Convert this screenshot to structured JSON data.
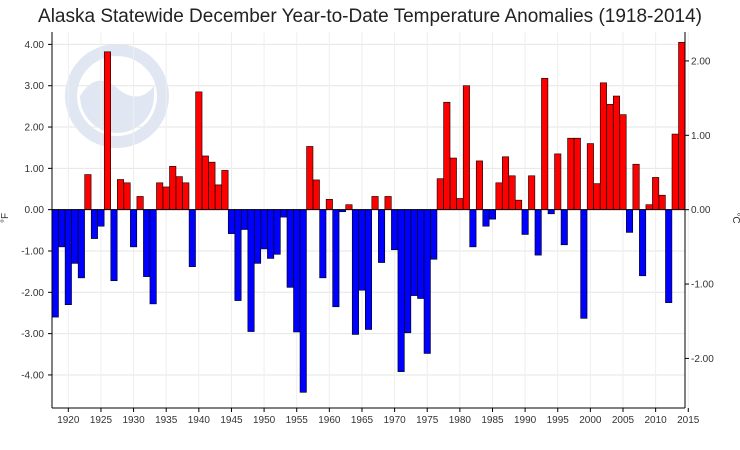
{
  "chart_data": {
    "type": "bar",
    "title": "Alaska Statewide December Year-to-Date Temperature Anomalies (1918-2014)",
    "ylabel_left": "°F",
    "ylabel_right": "°C",
    "ylim_f": [
      -4.8,
      4.3
    ],
    "yticks_f": [
      4,
      3,
      2,
      1,
      0,
      -1,
      -2,
      -3,
      -4
    ],
    "ytick_labels_f": [
      "4.00",
      "3.00",
      "2.00",
      "1.00",
      "0.00",
      "-1.00",
      "-2.00",
      "-3.00",
      "-4.00"
    ],
    "yticks_c": [
      2,
      1,
      0,
      -1,
      -2
    ],
    "ytick_labels_c": [
      "2.00",
      "1.00",
      "0.00",
      "-1.00",
      "-2.00"
    ],
    "xlim": [
      1917.5,
      2014.5
    ],
    "xticks": [
      1920,
      1925,
      1930,
      1935,
      1940,
      1945,
      1950,
      1955,
      1960,
      1965,
      1970,
      1975,
      1980,
      1985,
      1990,
      1995,
      2000,
      2005,
      2010,
      2015
    ],
    "positive_color": "#ff0000",
    "negative_color": "#0000ff",
    "years": [
      1918,
      1919,
      1920,
      1921,
      1922,
      1923,
      1924,
      1925,
      1926,
      1927,
      1928,
      1929,
      1930,
      1931,
      1932,
      1933,
      1934,
      1935,
      1936,
      1937,
      1938,
      1939,
      1940,
      1941,
      1942,
      1943,
      1944,
      1945,
      1946,
      1947,
      1948,
      1949,
      1950,
      1951,
      1952,
      1953,
      1954,
      1955,
      1956,
      1957,
      1958,
      1959,
      1960,
      1961,
      1962,
      1963,
      1964,
      1965,
      1966,
      1967,
      1968,
      1969,
      1970,
      1971,
      1972,
      1973,
      1974,
      1975,
      1976,
      1977,
      1978,
      1979,
      1980,
      1981,
      1982,
      1983,
      1984,
      1985,
      1986,
      1987,
      1988,
      1989,
      1990,
      1991,
      1992,
      1993,
      1994,
      1995,
      1996,
      1997,
      1998,
      1999,
      2000,
      2001,
      2002,
      2003,
      2004,
      2005,
      2006,
      2007,
      2008,
      2009,
      2010,
      2011,
      2012,
      2013,
      2014
    ],
    "values": [
      -2.6,
      -0.9,
      -2.3,
      -1.3,
      -1.65,
      0.85,
      -0.7,
      -0.4,
      3.82,
      -1.72,
      0.73,
      0.65,
      -0.9,
      0.32,
      -1.62,
      -2.28,
      0.65,
      0.55,
      1.05,
      0.8,
      0.65,
      -1.38,
      2.85,
      1.3,
      1.15,
      0.6,
      0.95,
      -0.58,
      -2.2,
      -0.48,
      -2.95,
      -1.3,
      -0.95,
      -1.18,
      -1.08,
      -0.18,
      -1.88,
      -2.96,
      -4.42,
      1.53,
      0.72,
      -1.65,
      0.25,
      -2.35,
      -0.05,
      0.12,
      -3.02,
      -1.95,
      -2.9,
      0.32,
      -1.28,
      0.32,
      -0.97,
      -3.92,
      -2.98,
      -2.08,
      -2.15,
      -3.48,
      -1.2,
      0.75,
      2.6,
      1.25,
      0.27,
      3.0,
      -0.9,
      1.18,
      -0.4,
      -0.23,
      0.65,
      1.28,
      0.82,
      0.23,
      -0.6,
      0.82,
      -1.1,
      3.18,
      -0.1,
      1.35,
      -0.85,
      1.73,
      1.73,
      -2.63,
      1.6,
      0.63,
      3.07,
      2.55,
      2.75,
      2.3,
      -0.55,
      1.1,
      -1.6,
      0.12,
      0.78,
      0.35,
      -2.25,
      1.83,
      4.05
    ]
  }
}
